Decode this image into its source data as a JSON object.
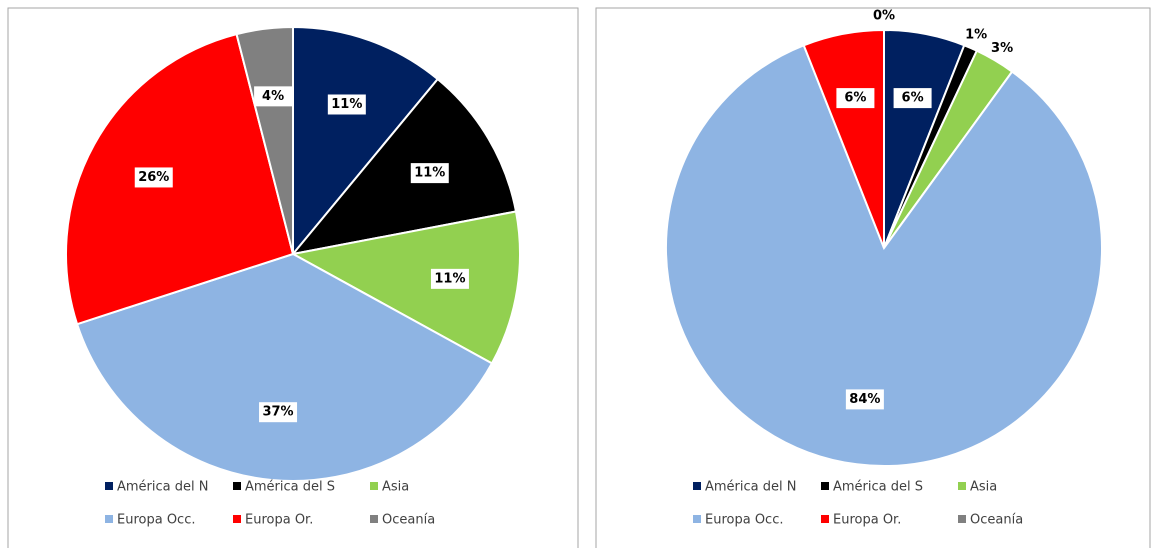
{
  "chart_data": [
    {
      "type": "pie",
      "categories": [
        "América del N",
        "América del S",
        "Asia",
        "Europa Occ.",
        "Europa Or.",
        "Oceanía"
      ],
      "values": [
        11,
        11,
        11,
        37,
        26,
        4
      ],
      "value_labels": [
        "11%",
        "11%",
        "11%",
        "37%",
        "26%",
        "4%"
      ],
      "colors": [
        "#002060",
        "#000000",
        "#92d050",
        "#8eb4e3",
        "#ff0000",
        "#808080"
      ]
    },
    {
      "type": "pie",
      "categories": [
        "América del N",
        "América del S",
        "Asia",
        "Europa Occ.",
        "Europa Or.",
        "Oceanía"
      ],
      "values": [
        6,
        1,
        3,
        84,
        6,
        0
      ],
      "value_labels": [
        "6%",
        "1%",
        "3%",
        "84%",
        "6%",
        "0%"
      ],
      "colors": [
        "#002060",
        "#000000",
        "#92d050",
        "#8eb4e3",
        "#ff0000",
        "#808080"
      ]
    }
  ]
}
